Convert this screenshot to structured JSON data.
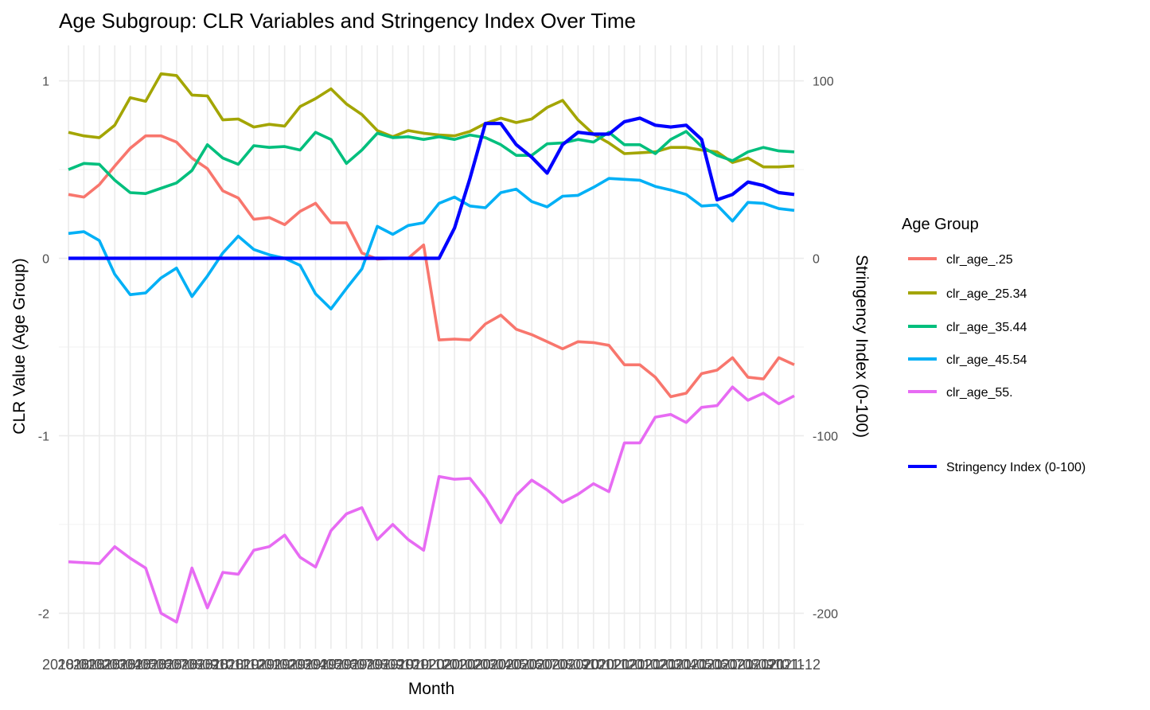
{
  "chart_data": {
    "type": "line",
    "title": "Age Subgroup: CLR Variables and Stringency Index Over Time",
    "xlabel": "Month",
    "ylabel": "CLR Value (Age Group)",
    "y2label": "Stringency Index (0-100)",
    "ylim": [
      -2.2,
      1.2
    ],
    "y2lim": [
      -220,
      120
    ],
    "yticks": [
      -2,
      -1,
      0,
      1
    ],
    "y2ticks": [
      -200,
      -100,
      0,
      100
    ],
    "grid": true,
    "legend_position": "right",
    "legend_title": "Age Group",
    "categories": [
      "2018-01",
      "2018-02",
      "2018-03",
      "2018-04",
      "2018-05",
      "2018-06",
      "2018-07",
      "2018-08",
      "2018-09",
      "2018-10",
      "2018-11",
      "2018-12",
      "2019-01",
      "2019-02",
      "2019-03",
      "2019-04",
      "2019-05",
      "2019-06",
      "2019-07",
      "2019-08",
      "2019-09",
      "2019-10",
      "2019-11",
      "2019-12",
      "2020-01",
      "2020-02",
      "2020-03",
      "2020-04",
      "2020-05",
      "2020-06",
      "2020-07",
      "2020-08",
      "2020-09",
      "2020-10",
      "2020-11",
      "2020-12",
      "2021-01",
      "2021-02",
      "2021-03",
      "2021-04",
      "2021-05",
      "2021-06",
      "2021-07",
      "2021-08",
      "2021-09",
      "2021-10",
      "2021-11",
      "2021-12"
    ],
    "series": [
      {
        "name": "clr_age_.25",
        "color": "#F8766D",
        "axis": "left",
        "values": [
          0.36,
          0.345,
          0.415,
          0.52,
          0.62,
          0.69,
          0.69,
          0.655,
          0.565,
          0.505,
          0.38,
          0.34,
          0.22,
          0.23,
          0.19,
          0.265,
          0.31,
          0.2,
          0.2,
          0.03,
          -0.005,
          0.0,
          0.0,
          0.075,
          -0.46,
          -0.455,
          -0.46,
          -0.37,
          -0.32,
          -0.4,
          -0.43,
          -0.47,
          -0.51,
          -0.47,
          -0.475,
          -0.49,
          -0.6,
          -0.6,
          -0.67,
          -0.78,
          -0.76,
          -0.65,
          -0.63,
          -0.56,
          -0.67,
          -0.68,
          -0.56,
          -0.6
        ]
      },
      {
        "name": "clr_age_25.34",
        "color": "#A3A500",
        "axis": "left",
        "values": [
          0.71,
          0.69,
          0.68,
          0.75,
          0.905,
          0.885,
          1.04,
          1.03,
          0.92,
          0.915,
          0.78,
          0.785,
          0.74,
          0.755,
          0.745,
          0.855,
          0.9,
          0.955,
          0.87,
          0.81,
          0.72,
          0.685,
          0.72,
          0.705,
          0.695,
          0.69,
          0.715,
          0.76,
          0.79,
          0.765,
          0.785,
          0.85,
          0.89,
          0.78,
          0.7,
          0.65,
          0.59,
          0.595,
          0.6,
          0.625,
          0.625,
          0.61,
          0.6,
          0.54,
          0.565,
          0.515,
          0.515,
          0.52
        ]
      },
      {
        "name": "clr_age_35.44",
        "color": "#00BF7D",
        "axis": "left",
        "values": [
          0.5,
          0.535,
          0.53,
          0.44,
          0.37,
          0.365,
          0.395,
          0.425,
          0.495,
          0.64,
          0.565,
          0.53,
          0.635,
          0.625,
          0.63,
          0.61,
          0.71,
          0.67,
          0.535,
          0.61,
          0.705,
          0.68,
          0.685,
          0.67,
          0.685,
          0.67,
          0.695,
          0.68,
          0.64,
          0.58,
          0.58,
          0.645,
          0.65,
          0.67,
          0.655,
          0.71,
          0.64,
          0.64,
          0.59,
          0.67,
          0.715,
          0.63,
          0.58,
          0.55,
          0.6,
          0.625,
          0.605,
          0.6
        ]
      },
      {
        "name": "clr_age_45.54",
        "color": "#00B0F6",
        "axis": "left",
        "values": [
          0.14,
          0.15,
          0.1,
          -0.09,
          -0.205,
          -0.195,
          -0.11,
          -0.055,
          -0.215,
          -0.1,
          0.03,
          0.125,
          0.05,
          0.02,
          0.0,
          -0.04,
          -0.2,
          -0.285,
          -0.17,
          -0.06,
          0.18,
          0.135,
          0.185,
          0.2,
          0.31,
          0.345,
          0.295,
          0.285,
          0.37,
          0.39,
          0.32,
          0.29,
          0.35,
          0.355,
          0.4,
          0.45,
          0.445,
          0.44,
          0.405,
          0.385,
          0.36,
          0.295,
          0.3,
          0.21,
          0.315,
          0.31,
          0.28,
          0.27
        ]
      },
      {
        "name": "clr_age_55.",
        "color": "#E76BF3",
        "axis": "left",
        "values": [
          -1.71,
          -1.715,
          -1.72,
          -1.625,
          -1.69,
          -1.745,
          -2.0,
          -2.05,
          -1.745,
          -1.97,
          -1.77,
          -1.78,
          -1.645,
          -1.625,
          -1.56,
          -1.685,
          -1.74,
          -1.535,
          -1.44,
          -1.405,
          -1.585,
          -1.5,
          -1.585,
          -1.645,
          -1.23,
          -1.245,
          -1.24,
          -1.35,
          -1.49,
          -1.335,
          -1.25,
          -1.305,
          -1.375,
          -1.33,
          -1.27,
          -1.315,
          -1.04,
          -1.04,
          -0.895,
          -0.88,
          -0.925,
          -0.84,
          -0.83,
          -0.725,
          -0.8,
          -0.76,
          -0.82,
          -0.775
        ]
      },
      {
        "name": "Stringency Index (0-100)",
        "color": "#0000FF",
        "axis": "right",
        "values": [
          0,
          0,
          0,
          0,
          0,
          0,
          0,
          0,
          0,
          0,
          0,
          0,
          0,
          0,
          0,
          0,
          0,
          0,
          0,
          0,
          0,
          0,
          0,
          0,
          0,
          17,
          45,
          76,
          76,
          64,
          57,
          48,
          64,
          71,
          70,
          70,
          77,
          79,
          75,
          74,
          75,
          67,
          33,
          36,
          43,
          41,
          37,
          36
        ]
      }
    ]
  }
}
